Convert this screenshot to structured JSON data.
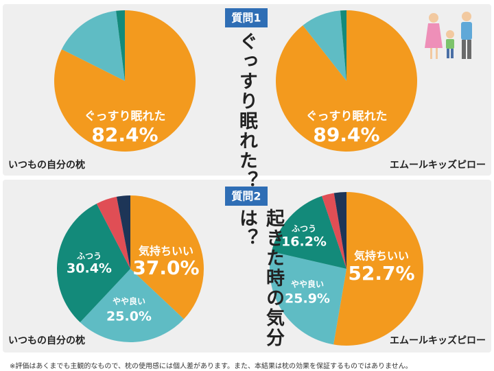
{
  "questions": [
    {
      "badge": "質問1",
      "text": "ぐっすり眠れた？"
    },
    {
      "badge": "質問2",
      "text": "起きた時の気分は？"
    }
  ],
  "chart_data": [
    {
      "type": "pie",
      "title": "いつもの自分の枕",
      "categories": [
        "ぐっすり眠れた",
        null,
        null
      ],
      "values": [
        82.4,
        15.6,
        2.0
      ],
      "value_labels": [
        "82.4%",
        null,
        null
      ],
      "colors": [
        "#f39a1e",
        "#5fbcc4",
        "#138a7a"
      ]
    },
    {
      "type": "pie",
      "title": "エムールキッズピロー",
      "categories": [
        "ぐっすり眠れた",
        null,
        null
      ],
      "values": [
        89.4,
        9.2,
        1.4
      ],
      "value_labels": [
        "89.4%",
        null,
        null
      ],
      "colors": [
        "#f39a1e",
        "#5fbcc4",
        "#138a7a"
      ]
    },
    {
      "type": "pie",
      "title": "いつもの自分の枕",
      "categories": [
        "気持ちいい",
        "やや良い",
        "ふつう",
        null,
        null
      ],
      "values": [
        37.0,
        25.0,
        30.4,
        4.6,
        3.0
      ],
      "value_labels": [
        "37.0%",
        "25.0%",
        "30.4%",
        null,
        null
      ],
      "colors": [
        "#f39a1e",
        "#5fbcc4",
        "#138a7a",
        "#e04e55",
        "#1d3557"
      ]
    },
    {
      "type": "pie",
      "title": "エムールキッズピロー",
      "categories": [
        "気持ちいい",
        "やや良い",
        "ふつう",
        null,
        null
      ],
      "values": [
        52.7,
        25.9,
        16.2,
        2.6,
        2.6
      ],
      "value_labels": [
        "52.7%",
        "25.9%",
        "16.2%",
        null,
        null
      ],
      "colors": [
        "#f39a1e",
        "#5fbcc4",
        "#138a7a",
        "#e04e55",
        "#1d3557"
      ]
    }
  ],
  "footnote": "※評価はあくまでも主観的なもので、枕の使用感には個人差があります。また、本結果は枕の効果を保証するものではありません。"
}
